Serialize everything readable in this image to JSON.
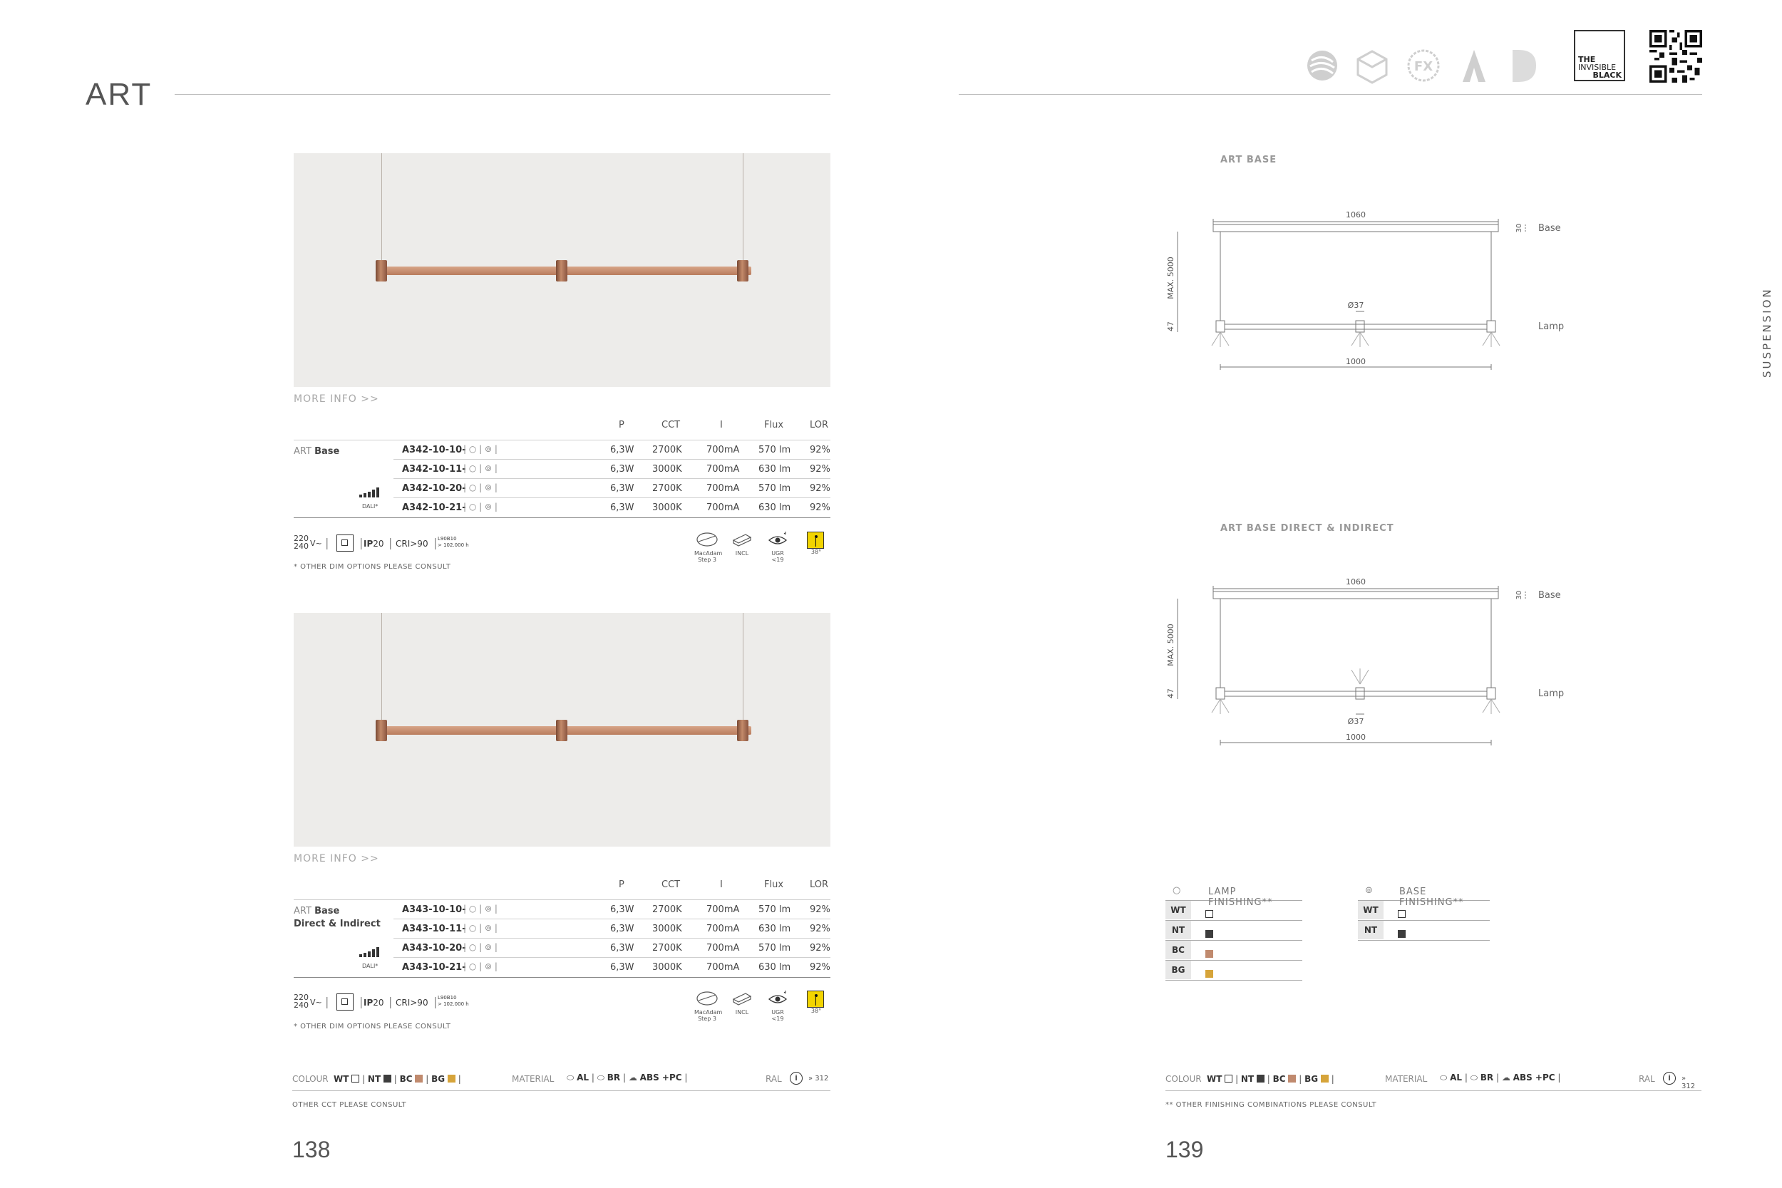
{
  "header": {
    "title": "ART",
    "logos": [
      "reddot-icon",
      "cube-icon",
      "fx-icon",
      "a-logo-icon",
      "d-logo-icon"
    ],
    "invisible_black": [
      "THE",
      "INVISIBLE",
      "BLACK"
    ]
  },
  "side_label": "SUSPENSION",
  "pages": {
    "left": "138",
    "right": "139"
  },
  "products": [
    {
      "more_info": "MORE INFO >>",
      "name_prefix": "ART",
      "name": "Base",
      "name2": "",
      "headers": [
        "P",
        "CCT",
        "I",
        "Flux",
        "LOR"
      ],
      "rows": [
        {
          "code": "A342-10-10-",
          "p": "6,3W",
          "cct": "2700K",
          "i": "700mA",
          "flux": "570 lm",
          "lor": "92%"
        },
        {
          "code": "A342-10-11-",
          "p": "6,3W",
          "cct": "3000K",
          "i": "700mA",
          "flux": "630 lm",
          "lor": "92%"
        },
        {
          "code": "A342-10-20-",
          "p": "6,3W",
          "cct": "2700K",
          "i": "700mA",
          "flux": "570 lm",
          "lor": "92%"
        },
        {
          "code": "A342-10-21-",
          "p": "6,3W",
          "cct": "3000K",
          "i": "700mA",
          "flux": "630 lm",
          "lor": "92%"
        }
      ],
      "dali": "DALI*",
      "voltage_top": "220",
      "voltage_bottom": "240",
      "voltage_unit": "V~",
      "ip": "IP",
      "ip_value": "20",
      "cri": "CRI>90",
      "life_top": "L90B10",
      "life_bottom": "> 102.000 h",
      "icons": {
        "macadam": "MacAdam",
        "macadam2": "Step 3",
        "incl": "INCL",
        "ugr": "UGR <19",
        "angle": "38°"
      },
      "note": "* OTHER DIM OPTIONS PLEASE CONSULT"
    },
    {
      "more_info": "MORE INFO >>",
      "name_prefix": "ART",
      "name": "Base",
      "name2": "Direct & Indirect",
      "headers": [
        "P",
        "CCT",
        "I",
        "Flux",
        "LOR"
      ],
      "rows": [
        {
          "code": "A343-10-10-",
          "p": "6,3W",
          "cct": "2700K",
          "i": "700mA",
          "flux": "570 lm",
          "lor": "92%"
        },
        {
          "code": "A343-10-11-",
          "p": "6,3W",
          "cct": "3000K",
          "i": "700mA",
          "flux": "630 lm",
          "lor": "92%"
        },
        {
          "code": "A343-10-20-",
          "p": "6,3W",
          "cct": "2700K",
          "i": "700mA",
          "flux": "570 lm",
          "lor": "92%"
        },
        {
          "code": "A343-10-21-",
          "p": "6,3W",
          "cct": "3000K",
          "i": "700mA",
          "flux": "630 lm",
          "lor": "92%"
        }
      ],
      "dali": "DALI*",
      "voltage_top": "220",
      "voltage_bottom": "240",
      "voltage_unit": "V~",
      "ip": "IP",
      "ip_value": "20",
      "cri": "CRI>90",
      "life_top": "L90B10",
      "life_bottom": "> 102.000 h",
      "icons": {
        "macadam": "MacAdam",
        "macadam2": "Step 3",
        "incl": "INCL",
        "ugr": "UGR <19",
        "angle": "38°"
      },
      "note": "* OTHER DIM OPTIONS PLEASE CONSULT"
    }
  ],
  "drawings": [
    {
      "title": "ART BASE",
      "width_top": "1060",
      "width_bottom": "1000",
      "height": "MAX. 5000",
      "base_h": "30",
      "lamp_h": "47",
      "diameter": "Ø37",
      "base_label": "Base",
      "lamp_label": "Lamp"
    },
    {
      "title": "ART BASE DIRECT & INDIRECT",
      "width_top": "1060",
      "width_bottom": "1000",
      "height": "MAX. 5000",
      "base_h": "30",
      "lamp_h": "47",
      "diameter": "Ø37",
      "base_label": "Base",
      "lamp_label": "Lamp"
    }
  ],
  "finishing": {
    "lamp_title": "LAMP FINISHING**",
    "base_title": "BASE FINISHING**",
    "lamp": [
      {
        "code": "WT",
        "color": "#ffffff"
      },
      {
        "code": "NT",
        "color": "#3d3d3d"
      },
      {
        "code": "BC",
        "color": "#c08a6e"
      },
      {
        "code": "BG",
        "color": "#d6a43a"
      }
    ],
    "base": [
      {
        "code": "WT",
        "color": "#ffffff"
      },
      {
        "code": "NT",
        "color": "#3d3d3d"
      }
    ]
  },
  "footer": {
    "colour_label": "COLOUR",
    "colours": [
      {
        "code": "WT",
        "color": "#ffffff"
      },
      {
        "code": "NT",
        "color": "#3d3d3d"
      },
      {
        "code": "BC",
        "color": "#c08a6e"
      },
      {
        "code": "BG",
        "color": "#d6a43a"
      }
    ],
    "material_label": "MATERIAL",
    "materials": [
      "AL",
      "BR",
      "ABS +PC"
    ],
    "ral_label": "RAL",
    "ral_page": "» 312",
    "left_note": "OTHER CCT PLEASE CONSULT",
    "right_note": "** OTHER FINISHING COMBINATIONS PLEASE CONSULT"
  }
}
